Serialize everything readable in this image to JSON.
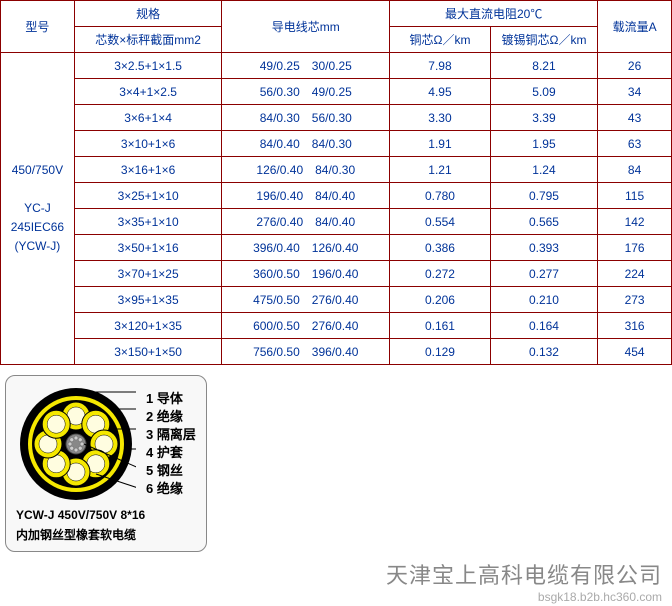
{
  "table": {
    "headers": {
      "model": "型号",
      "spec": "规格",
      "spec_sub": "芯数×标秤截面mm2",
      "core": "导电线芯mm",
      "resistance": "最大直流电阻20℃",
      "res_cu": "铜芯Ω／km",
      "res_sn": "镀锡铜芯Ω／km",
      "capacity": "载流量A"
    },
    "model_col": {
      "voltage": "450/750V",
      "code": "YC-J",
      "std": "245IEC66",
      "alt": "(YCW-J)"
    },
    "rows": [
      {
        "spec": "3×2.5+1×1.5",
        "core": "49/0.25　30/0.25",
        "cu": "7.98",
        "sn": "8.21",
        "amp": "26"
      },
      {
        "spec": "3×4+1×2.5",
        "core": "56/0.30　49/0.25",
        "cu": "4.95",
        "sn": "5.09",
        "amp": "34"
      },
      {
        "spec": "3×6+1×4",
        "core": "84/0.30　56/0.30",
        "cu": "3.30",
        "sn": "3.39",
        "amp": "43"
      },
      {
        "spec": "3×10+1×6",
        "core": "84/0.40　84/0.30",
        "cu": "1.91",
        "sn": "1.95",
        "amp": "63"
      },
      {
        "spec": "3×16+1×6",
        "core": "126/0.40　84/0.30",
        "cu": "1.21",
        "sn": "1.24",
        "amp": "84"
      },
      {
        "spec": "3×25+1×10",
        "core": "196/0.40　84/0.40",
        "cu": "0.780",
        "sn": "0.795",
        "amp": "115"
      },
      {
        "spec": "3×35+1×10",
        "core": "276/0.40　84/0.40",
        "cu": "0.554",
        "sn": "0.565",
        "amp": "142"
      },
      {
        "spec": "3×50+1×16",
        "core": "396/0.40　126/0.40",
        "cu": "0.386",
        "sn": "0.393",
        "amp": "176"
      },
      {
        "spec": "3×70+1×25",
        "core": "360/0.50　196/0.40",
        "cu": "0.272",
        "sn": "0.277",
        "amp": "224"
      },
      {
        "spec": "3×95+1×35",
        "core": "475/0.50　276/0.40",
        "cu": "0.206",
        "sn": "0.210",
        "amp": "273"
      },
      {
        "spec": "3×120+1×35",
        "core": "600/0.50　276/0.40",
        "cu": "0.161",
        "sn": "0.164",
        "amp": "316"
      },
      {
        "spec": "3×150+1×50",
        "core": "756/0.50　396/0.40",
        "cu": "0.129",
        "sn": "0.132",
        "amp": "454"
      }
    ]
  },
  "figure": {
    "legend": [
      "1 导体",
      "2 绝缘",
      "3 隔离层",
      "4 护套",
      "5 钢丝",
      "6 绝缘"
    ],
    "caption1": "YCW-J 450V/750V 8*16",
    "caption2": "内加钢丝型橡套软电缆",
    "colors": {
      "outer": "#000000",
      "steel": "#f5e800",
      "sep": "#000000",
      "insul": "#f5e800",
      "core": "#f5e800"
    }
  },
  "footer": {
    "main": "天津宝上高科电缆有限公司",
    "sub": "bsgk18.b2b.hc360.com"
  }
}
